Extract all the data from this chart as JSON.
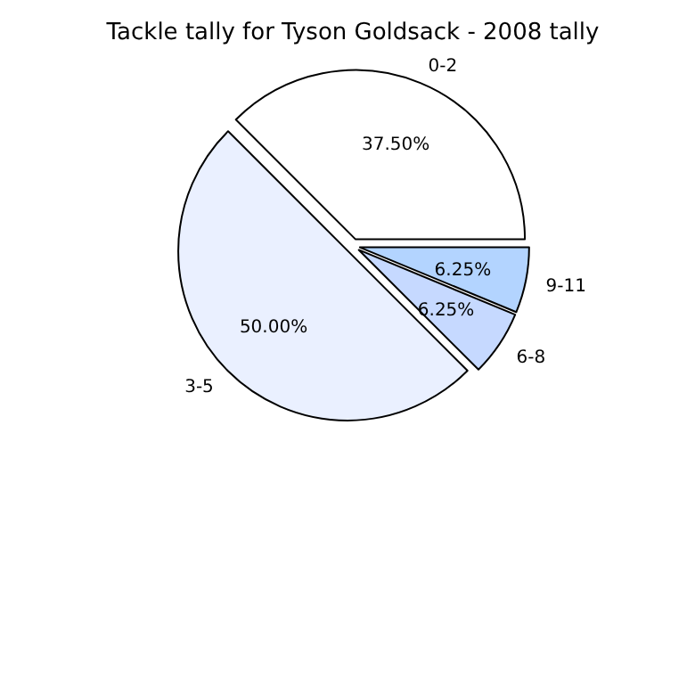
{
  "chart_data": {
    "type": "pie",
    "title": "Tackle tally for Tyson Goldsack - 2008 tally",
    "categories": [
      "0-2",
      "3-5",
      "6-8",
      "9-11"
    ],
    "values": [
      37.5,
      50,
      6.25,
      6.25
    ],
    "value_labels": [
      "37.50%",
      "50.00%",
      "6.25%",
      "6.25%"
    ],
    "colors": [
      "#ffffff",
      "#eaf0ff",
      "#c6d9ff",
      "#b3d4ff"
    ]
  }
}
